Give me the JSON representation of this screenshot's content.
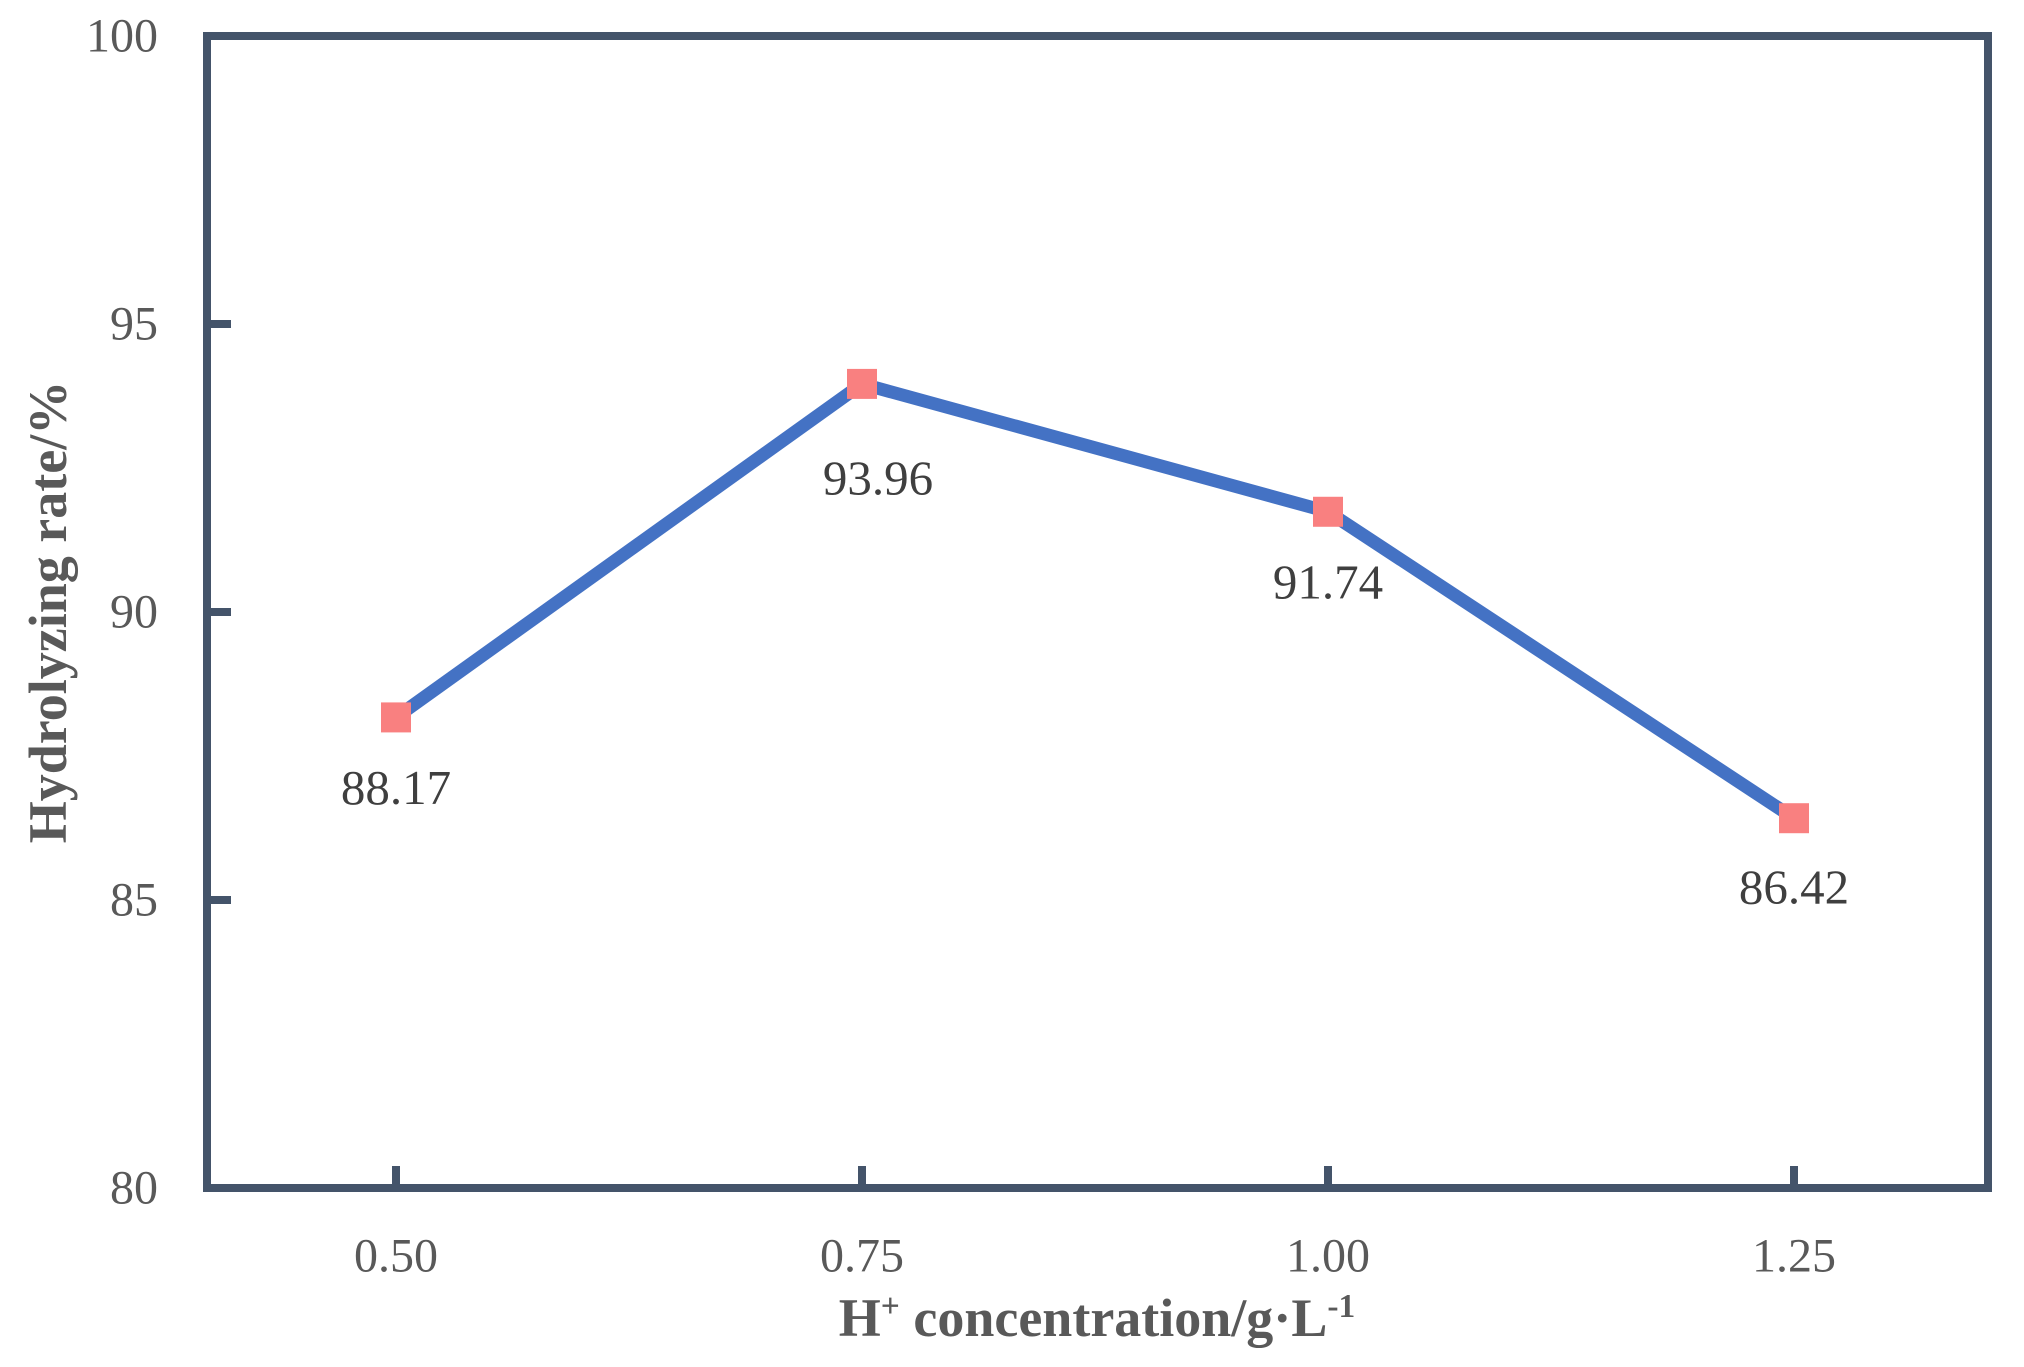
{
  "chart_data": {
    "type": "line",
    "title": "",
    "categories": [
      "0.50",
      "0.75",
      "1.00",
      "1.25"
    ],
    "x_values": [
      0.5,
      0.75,
      1.0,
      1.25
    ],
    "values": [
      88.17,
      93.96,
      91.74,
      86.42
    ],
    "data_labels": [
      "88.17",
      "93.96",
      "91.74",
      "86.42"
    ],
    "xlabel": "H+ concentration/g·L-1",
    "xlabel_parts": {
      "pre": "H",
      "sup1": "+",
      "mid": " concentration/g·L",
      "sup2": "-1"
    },
    "ylabel": "Hydrolyzing rate/%",
    "ylim": [
      80,
      100
    ],
    "yticks": [
      100,
      95,
      90,
      85,
      80
    ],
    "ytick_labels": [
      "100",
      "95",
      "90",
      "85",
      "80"
    ],
    "grid": false,
    "legend": "none",
    "marker": "square",
    "colors": {
      "line": "#4472C4",
      "marker": "#F98080",
      "frame": "#44546A",
      "tick_label": "#595959",
      "axis_title": "#595959",
      "data_label": "#3F3F3F",
      "background": "#FFFFFF"
    }
  }
}
